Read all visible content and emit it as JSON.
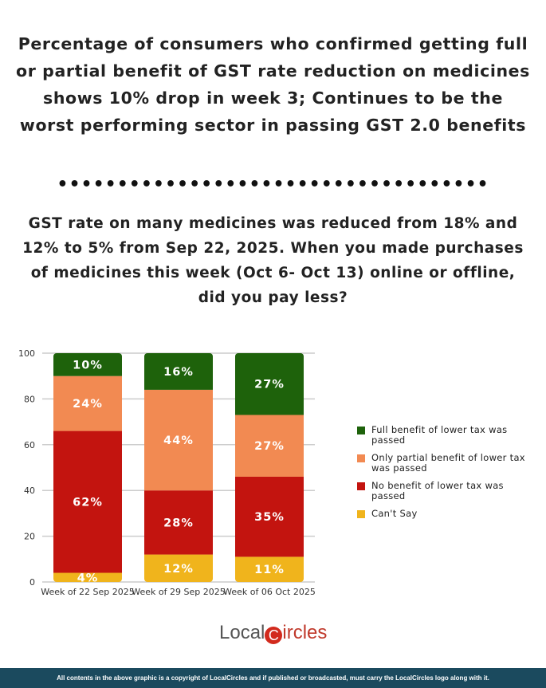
{
  "title": "Percentage of consumers who confirmed getting full or partial benefit of GST rate reduction on medicines shows 10% drop in week 3; Continues to be the worst performing sector in passing GST 2.0 benefits",
  "divider": "••••••••••••••••••••••••••••••••••••",
  "subtitle": "GST rate on many medicines was reduced from 18% and 12% to 5% from Sep 22, 2025. When you made purchases of medicines this week (Oct 6- Oct 13) online or offline, did you pay less?",
  "chart_data": {
    "type": "bar",
    "stacked": true,
    "categories": [
      "Week of 22 Sep 2025",
      "Week of 29 Sep 2025",
      "Week of 06 Oct 2025"
    ],
    "ylim": [
      0,
      100
    ],
    "yticks": [
      0,
      20,
      40,
      60,
      80,
      100
    ],
    "grid": true,
    "legend": "right",
    "series": [
      {
        "name": "Can't Say",
        "values": [
          4,
          12,
          11
        ],
        "color": "#f0b41c"
      },
      {
        "name": "No benefit of lower tax was passed",
        "values": [
          62,
          28,
          35
        ],
        "color": "#c3140f"
      },
      {
        "name": "Only partial benefit of lower tax was passed",
        "values": [
          24,
          44,
          27
        ],
        "color": "#f28a52"
      },
      {
        "name": "Full benefit of lower tax was passed",
        "values": [
          10,
          16,
          27
        ],
        "color": "#1e620b"
      }
    ],
    "legend_order": [
      3,
      2,
      1,
      0
    ]
  },
  "logo": {
    "text_a": "Local",
    "text_c": "C",
    "text_b": "ircles"
  },
  "footer": "All contents in the above graphic is a copyright of LocalCircles and if published or broadcasted, must carry the LocalCircles logo along with it."
}
